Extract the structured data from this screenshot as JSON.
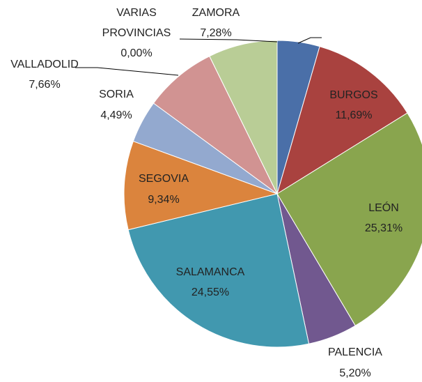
{
  "chart_data": {
    "type": "pie",
    "categories": [
      null,
      "BURGOS",
      "LEÓN",
      "PALENCIA",
      "SALAMANCA",
      "SEGOVIA",
      "SORIA",
      "VALLADOLID",
      "VARIAS PROVINCIAS",
      "ZAMORA"
    ],
    "values": [
      4.48,
      11.69,
      25.31,
      5.2,
      24.55,
      9.34,
      4.49,
      7.66,
      0.0,
      7.28
    ],
    "value_labels": [
      null,
      "11,69%",
      "25,31%",
      "5,20%",
      "24,55%",
      "9,34%",
      "4,49%",
      "7,66%",
      "0,00%",
      "7,28%"
    ],
    "colors": [
      "#4a6fa8",
      "#a9423f",
      "#89a54e",
      "#71588f",
      "#4198af",
      "#db843d",
      "#93a9cf",
      "#d19392",
      "#c0c0c0",
      "#b9cd96"
    ]
  }
}
